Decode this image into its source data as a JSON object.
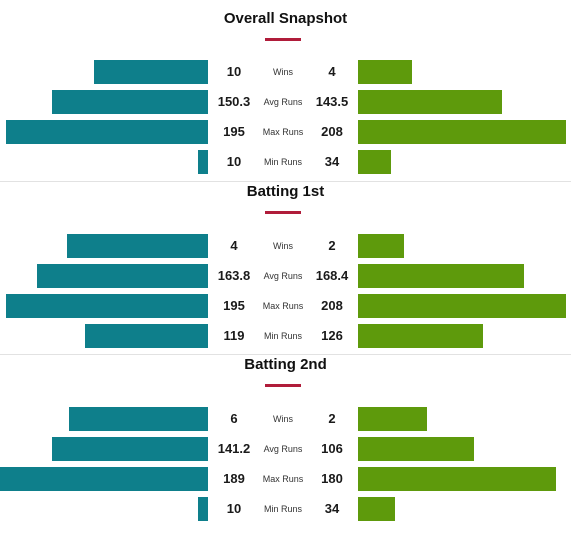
{
  "colors": {
    "left_bar": "#0e7f8b",
    "right_bar": "#5e9a0c",
    "accent": "#b01c3a"
  },
  "sections": [
    {
      "title": "Overall Snapshot",
      "rows": [
        {
          "label": "Wins",
          "left": "10",
          "right": "4",
          "left_fill": 0.55,
          "right_fill": 0.26
        },
        {
          "label": "Avg Runs",
          "left": "150.3",
          "right": "143.5",
          "left_fill": 0.75,
          "right_fill": 0.69
        },
        {
          "label": "Max Runs",
          "left": "195",
          "right": "208",
          "left_fill": 0.97,
          "right_fill": 1.0
        },
        {
          "label": "Min Runs",
          "left": "10",
          "right": "34",
          "left_fill": 0.05,
          "right_fill": 0.16
        }
      ]
    },
    {
      "title": "Batting 1st",
      "rows": [
        {
          "label": "Wins",
          "left": "4",
          "right": "2",
          "left_fill": 0.68,
          "right_fill": 0.22
        },
        {
          "label": "Avg Runs",
          "left": "163.8",
          "right": "168.4",
          "left_fill": 0.82,
          "right_fill": 0.8
        },
        {
          "label": "Max Runs",
          "left": "195",
          "right": "208",
          "left_fill": 0.97,
          "right_fill": 1.0
        },
        {
          "label": "Min Runs",
          "left": "119",
          "right": "126",
          "left_fill": 0.59,
          "right_fill": 0.6
        }
      ]
    },
    {
      "title": "Batting 2nd",
      "rows": [
        {
          "label": "Wins",
          "left": "6",
          "right": "2",
          "left_fill": 0.67,
          "right_fill": 0.33
        },
        {
          "label": "Avg Runs",
          "left": "141.2",
          "right": "106",
          "left_fill": 0.75,
          "right_fill": 0.56
        },
        {
          "label": "Max Runs",
          "left": "189",
          "right": "180",
          "left_fill": 1.0,
          "right_fill": 0.95
        },
        {
          "label": "Min Runs",
          "left": "10",
          "right": "34",
          "left_fill": 0.05,
          "right_fill": 0.18
        }
      ]
    }
  ]
}
